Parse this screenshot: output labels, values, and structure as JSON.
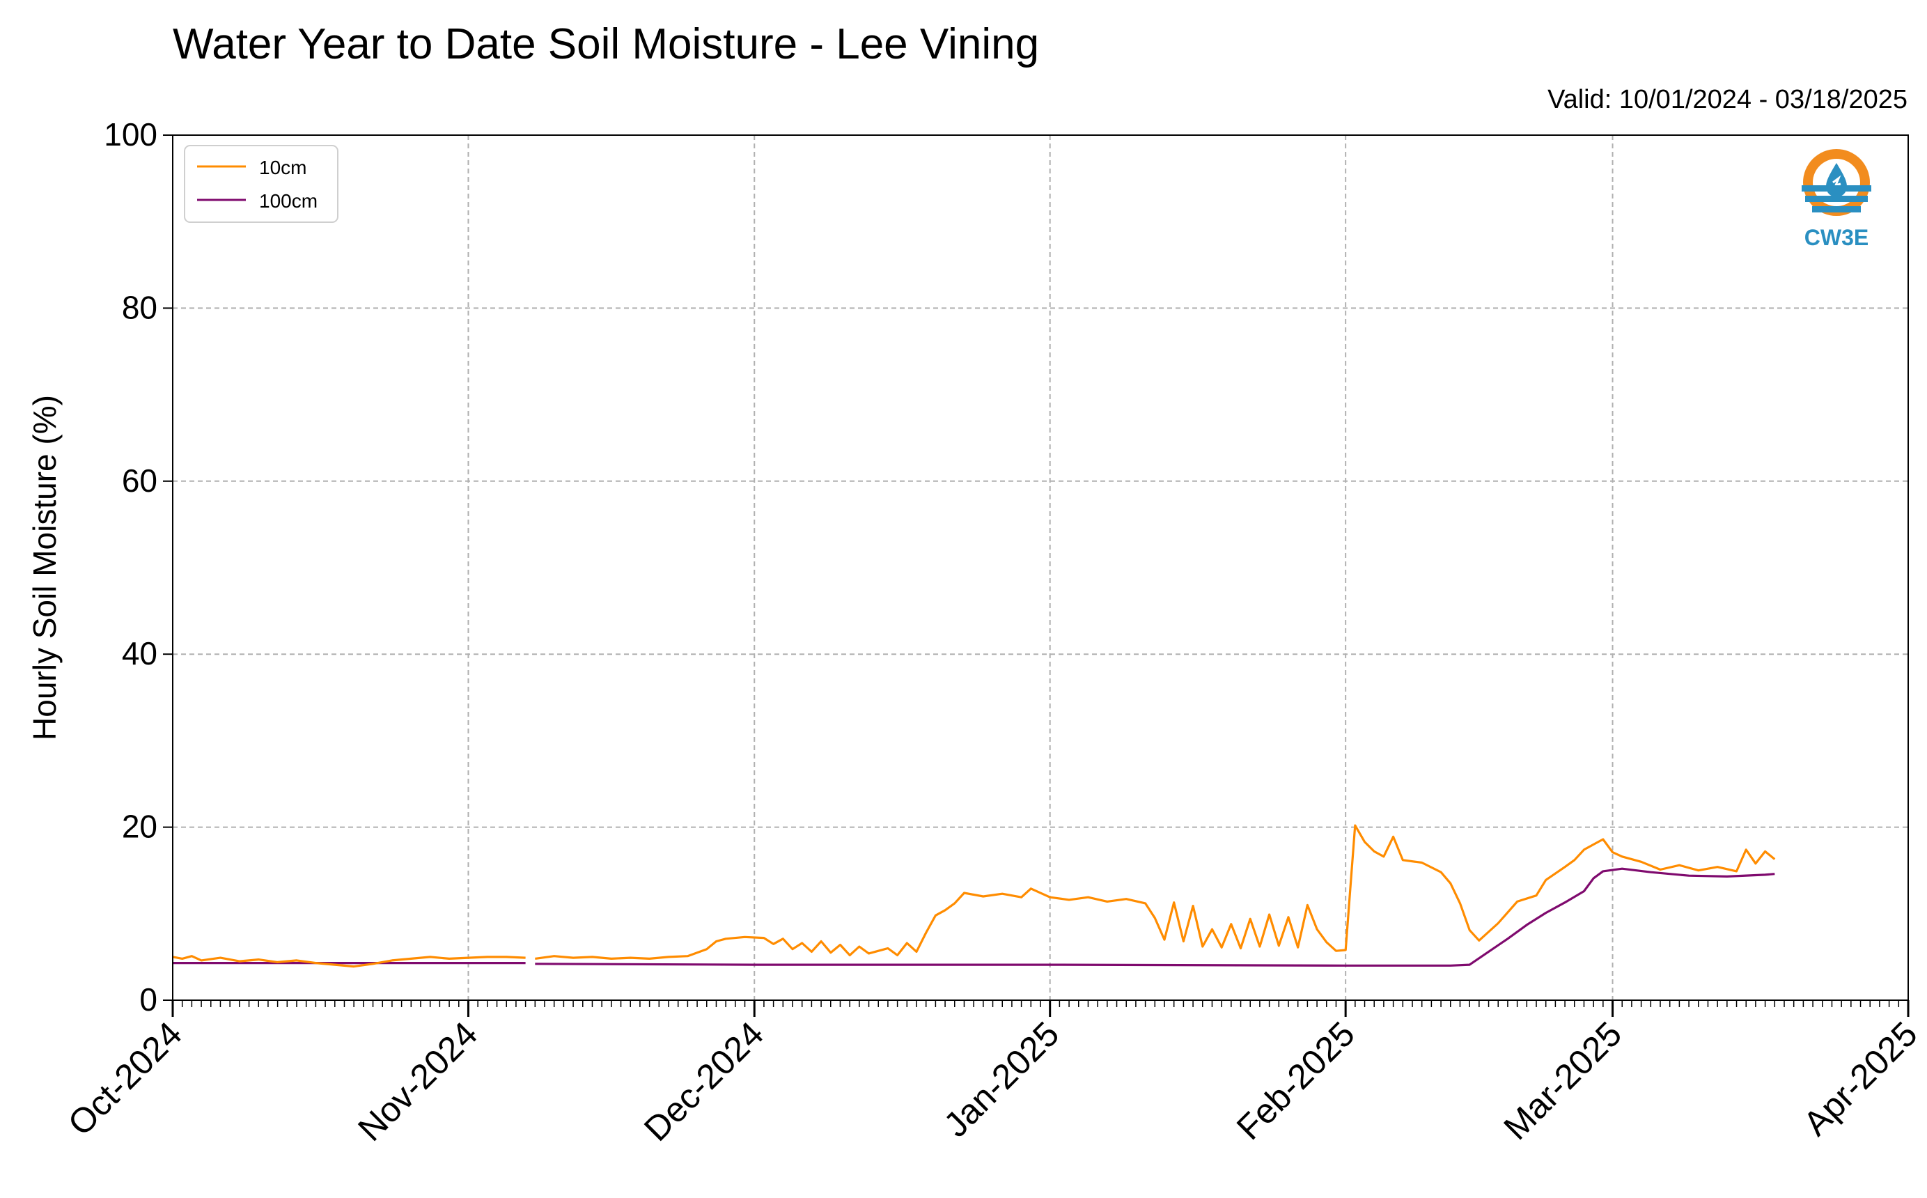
{
  "title": "Water Year to Date Soil Moisture - Lee Vining",
  "valid_text": "Valid: 10/01/2024 - 03/18/2025",
  "logo": {
    "text": "CW3E",
    "icon": "cw3e-water-drop-logo",
    "colors": {
      "orange": "#f28c1e",
      "blue": "#2a8fc1"
    }
  },
  "colors": {
    "s10": "#ff8c00",
    "s100": "#7f0a6e",
    "grid": "#b0b0b0"
  },
  "chart_data": {
    "type": "line",
    "title": "Water Year to Date Soil Moisture - Lee Vining",
    "xlabel": "",
    "ylabel": "Hourly Soil Moisture (%)",
    "xlim": [
      "2024-10-01",
      "2025-04-01"
    ],
    "ylim": [
      0,
      100
    ],
    "yticks": [
      0,
      20,
      40,
      60,
      80,
      100
    ],
    "xticks": [
      "2024-10-01",
      "2024-11-01",
      "2024-12-01",
      "2025-01-01",
      "2025-02-01",
      "2025-03-01",
      "2025-04-01"
    ],
    "xtick_labels": [
      "Oct-2024",
      "Nov-2024",
      "Dec-2024",
      "Jan-2025",
      "Feb-2025",
      "Mar-2025",
      "Apr-2025"
    ],
    "grid": true,
    "legend_position": "top-left",
    "series": [
      {
        "name": "10cm",
        "color": "#ff8c00",
        "points": [
          [
            "2024-10-01",
            5.0
          ],
          [
            "2024-10-02",
            4.8
          ],
          [
            "2024-10-03",
            5.1
          ],
          [
            "2024-10-04",
            4.6
          ],
          [
            "2024-10-06",
            4.9
          ],
          [
            "2024-10-08",
            4.5
          ],
          [
            "2024-10-10",
            4.7
          ],
          [
            "2024-10-12",
            4.4
          ],
          [
            "2024-10-14",
            4.6
          ],
          [
            "2024-10-16",
            4.3
          ],
          [
            "2024-10-18",
            4.1
          ],
          [
            "2024-10-20",
            3.9
          ],
          [
            "2024-10-22",
            4.2
          ],
          [
            "2024-10-24",
            4.6
          ],
          [
            "2024-10-26",
            4.8
          ],
          [
            "2024-10-28",
            5.0
          ],
          [
            "2024-10-30",
            4.8
          ],
          [
            "2024-11-01",
            4.9
          ],
          [
            "2024-11-03",
            5.0
          ],
          [
            "2024-11-05",
            5.0
          ],
          [
            "2024-11-07",
            4.9
          ],
          null,
          [
            "2024-11-08",
            4.8
          ],
          [
            "2024-11-10",
            5.1
          ],
          [
            "2024-11-12",
            4.9
          ],
          [
            "2024-11-14",
            5.0
          ],
          [
            "2024-11-16",
            4.8
          ],
          [
            "2024-11-18",
            4.9
          ],
          [
            "2024-11-20",
            4.8
          ],
          [
            "2024-11-22",
            5.0
          ],
          [
            "2024-11-24",
            5.1
          ],
          [
            "2024-11-26",
            5.9
          ],
          [
            "2024-11-27",
            6.8
          ],
          [
            "2024-11-28",
            7.1
          ],
          [
            "2024-11-30",
            7.3
          ],
          [
            "2024-12-02",
            7.2
          ],
          [
            "2024-12-03",
            6.5
          ],
          [
            "2024-12-04",
            7.1
          ],
          [
            "2024-12-05",
            5.9
          ],
          [
            "2024-12-06",
            6.6
          ],
          [
            "2024-12-07",
            5.6
          ],
          [
            "2024-12-08",
            6.8
          ],
          [
            "2024-12-09",
            5.5
          ],
          [
            "2024-12-10",
            6.4
          ],
          [
            "2024-12-11",
            5.2
          ],
          [
            "2024-12-12",
            6.2
          ],
          [
            "2024-12-13",
            5.4
          ],
          [
            "2024-12-15",
            6.0
          ],
          [
            "2024-12-16",
            5.2
          ],
          [
            "2024-12-17",
            6.6
          ],
          [
            "2024-12-18",
            5.6
          ],
          [
            "2024-12-19",
            7.8
          ],
          [
            "2024-12-20",
            9.8
          ],
          [
            "2024-12-21",
            10.4
          ],
          [
            "2024-12-22",
            11.2
          ],
          [
            "2024-12-23",
            12.4
          ],
          [
            "2024-12-25",
            12.0
          ],
          [
            "2024-12-27",
            12.3
          ],
          [
            "2024-12-29",
            11.9
          ],
          [
            "2024-12-30",
            12.9
          ],
          [
            "2025-01-01",
            11.9
          ],
          [
            "2025-01-03",
            11.6
          ],
          [
            "2025-01-05",
            11.9
          ],
          [
            "2025-01-07",
            11.4
          ],
          [
            "2025-01-09",
            11.7
          ],
          [
            "2025-01-11",
            11.2
          ],
          [
            "2025-01-12",
            9.5
          ],
          [
            "2025-01-13",
            7.0
          ],
          [
            "2025-01-14",
            11.3
          ],
          [
            "2025-01-15",
            6.8
          ],
          [
            "2025-01-16",
            10.9
          ],
          [
            "2025-01-17",
            6.2
          ],
          [
            "2025-01-18",
            8.2
          ],
          [
            "2025-01-19",
            6.1
          ],
          [
            "2025-01-20",
            8.8
          ],
          [
            "2025-01-21",
            6.0
          ],
          [
            "2025-01-22",
            9.4
          ],
          [
            "2025-01-23",
            6.2
          ],
          [
            "2025-01-24",
            9.9
          ],
          [
            "2025-01-25",
            6.3
          ],
          [
            "2025-01-26",
            9.6
          ],
          [
            "2025-01-27",
            6.1
          ],
          [
            "2025-01-28",
            11.0
          ],
          [
            "2025-01-29",
            8.2
          ],
          [
            "2025-01-30",
            6.7
          ],
          [
            "2025-01-31",
            5.7
          ],
          [
            "2025-02-01",
            5.8
          ],
          [
            "2025-02-02",
            20.2
          ],
          [
            "2025-02-03",
            18.3
          ],
          [
            "2025-02-04",
            17.2
          ],
          [
            "2025-02-05",
            16.6
          ],
          [
            "2025-02-06",
            18.9
          ],
          [
            "2025-02-07",
            16.2
          ],
          [
            "2025-02-09",
            15.9
          ],
          [
            "2025-02-11",
            14.8
          ],
          [
            "2025-02-12",
            13.5
          ],
          [
            "2025-02-13",
            11.2
          ],
          [
            "2025-02-14",
            8.1
          ],
          [
            "2025-02-15",
            6.9
          ],
          [
            "2025-02-17",
            8.9
          ],
          [
            "2025-02-19",
            11.4
          ],
          [
            "2025-02-21",
            12.1
          ],
          [
            "2025-02-22",
            13.9
          ],
          [
            "2025-02-24",
            15.4
          ],
          [
            "2025-02-25",
            16.2
          ],
          [
            "2025-02-26",
            17.4
          ],
          [
            "2025-02-27",
            18.0
          ],
          [
            "2025-02-28",
            18.6
          ],
          [
            "2025-03-01",
            17.1
          ],
          [
            "2025-03-02",
            16.6
          ],
          [
            "2025-03-04",
            16.0
          ],
          [
            "2025-03-06",
            15.1
          ],
          [
            "2025-03-08",
            15.6
          ],
          [
            "2025-03-10",
            15.0
          ],
          [
            "2025-03-12",
            15.4
          ],
          [
            "2025-03-14",
            14.9
          ],
          [
            "2025-03-15",
            17.4
          ],
          [
            "2025-03-16",
            15.8
          ],
          [
            "2025-03-17",
            17.2
          ],
          [
            "2025-03-18",
            16.3
          ]
        ]
      },
      {
        "name": "100cm",
        "color": "#7f0a6e",
        "points": [
          [
            "2024-10-01",
            4.3
          ],
          [
            "2024-10-15",
            4.3
          ],
          [
            "2024-11-01",
            4.3
          ],
          [
            "2024-11-07",
            4.3
          ],
          null,
          [
            "2024-11-08",
            4.2
          ],
          [
            "2024-12-01",
            4.1
          ],
          [
            "2025-01-01",
            4.1
          ],
          [
            "2025-02-01",
            4.0
          ],
          [
            "2025-02-12",
            4.0
          ],
          [
            "2025-02-14",
            4.1
          ],
          [
            "2025-02-16",
            5.6
          ],
          [
            "2025-02-18",
            7.1
          ],
          [
            "2025-02-20",
            8.7
          ],
          [
            "2025-02-22",
            10.1
          ],
          [
            "2025-02-24",
            11.3
          ],
          [
            "2025-02-26",
            12.6
          ],
          [
            "2025-02-27",
            14.1
          ],
          [
            "2025-02-28",
            14.9
          ],
          [
            "2025-03-02",
            15.2
          ],
          [
            "2025-03-05",
            14.8
          ],
          [
            "2025-03-09",
            14.4
          ],
          [
            "2025-03-13",
            14.3
          ],
          [
            "2025-03-17",
            14.5
          ],
          [
            "2025-03-18",
            14.6
          ]
        ]
      }
    ]
  }
}
